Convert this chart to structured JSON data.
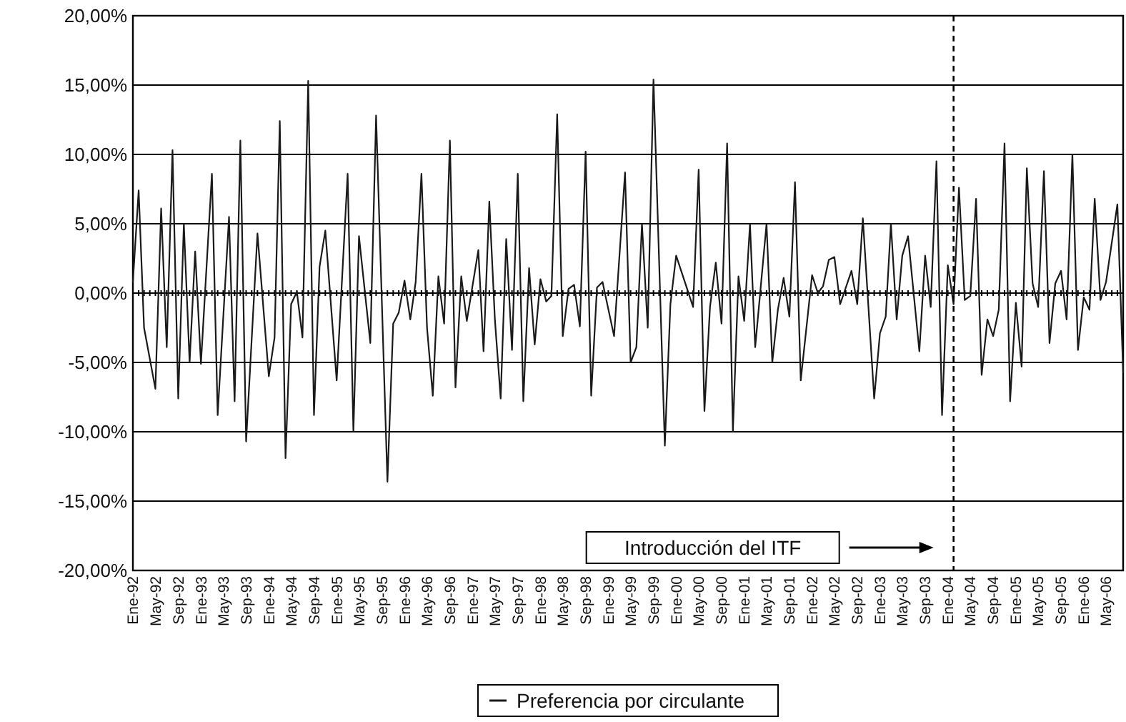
{
  "chart_data": {
    "type": "line",
    "xlim": [
      "1992-01",
      "2006-08"
    ],
    "ylim": [
      -20,
      20
    ],
    "yticks": [
      {
        "value": -20,
        "label": "-20,00%"
      },
      {
        "value": -15,
        "label": "-15,00%"
      },
      {
        "value": -10,
        "label": "-10,00%"
      },
      {
        "value": -5,
        "label": "-5,00%"
      },
      {
        "value": 0,
        "label": "0,00%"
      },
      {
        "value": 5,
        "label": "5,00%"
      },
      {
        "value": 10,
        "label": "10,00%"
      },
      {
        "value": 15,
        "label": "15,00%"
      },
      {
        "value": 20,
        "label": "20,00%"
      }
    ],
    "xticks": [
      {
        "value": "1992-01",
        "label": "Ene-92"
      },
      {
        "value": "1992-05",
        "label": "May-92"
      },
      {
        "value": "1992-09",
        "label": "Sep-92"
      },
      {
        "value": "1993-01",
        "label": "Ene-93"
      },
      {
        "value": "1993-05",
        "label": "May-93"
      },
      {
        "value": "1993-09",
        "label": "Sep-93"
      },
      {
        "value": "1994-01",
        "label": "Ene-94"
      },
      {
        "value": "1994-05",
        "label": "May-94"
      },
      {
        "value": "1994-09",
        "label": "Sep-94"
      },
      {
        "value": "1995-01",
        "label": "Ene-95"
      },
      {
        "value": "1995-05",
        "label": "May-95"
      },
      {
        "value": "1995-09",
        "label": "Sep-95"
      },
      {
        "value": "1996-01",
        "label": "Ene-96"
      },
      {
        "value": "1996-05",
        "label": "May-96"
      },
      {
        "value": "1996-09",
        "label": "Sep-96"
      },
      {
        "value": "1997-01",
        "label": "Ene-97"
      },
      {
        "value": "1997-05",
        "label": "May-97"
      },
      {
        "value": "1997-09",
        "label": "Sep-97"
      },
      {
        "value": "1998-01",
        "label": "Ene-98"
      },
      {
        "value": "1998-05",
        "label": "May-98"
      },
      {
        "value": "1998-09",
        "label": "Sep-98"
      },
      {
        "value": "1999-01",
        "label": "Ene-99"
      },
      {
        "value": "1999-05",
        "label": "May-99"
      },
      {
        "value": "1999-09",
        "label": "Sep-99"
      },
      {
        "value": "2000-01",
        "label": "Ene-00"
      },
      {
        "value": "2000-05",
        "label": "May-00"
      },
      {
        "value": "2000-09",
        "label": "Sep-00"
      },
      {
        "value": "2001-01",
        "label": "Ene-01"
      },
      {
        "value": "2001-05",
        "label": "May-01"
      },
      {
        "value": "2001-09",
        "label": "Sep-01"
      },
      {
        "value": "2002-01",
        "label": "Ene-02"
      },
      {
        "value": "2002-05",
        "label": "May-02"
      },
      {
        "value": "2002-09",
        "label": "Sep-02"
      },
      {
        "value": "2003-01",
        "label": "Ene-03"
      },
      {
        "value": "2003-05",
        "label": "May-03"
      },
      {
        "value": "2003-09",
        "label": "Sep-03"
      },
      {
        "value": "2004-01",
        "label": "Ene-04"
      },
      {
        "value": "2004-05",
        "label": "May-04"
      },
      {
        "value": "2004-09",
        "label": "Sep-04"
      },
      {
        "value": "2005-01",
        "label": "Ene-05"
      },
      {
        "value": "2005-05",
        "label": "May-05"
      },
      {
        "value": "2005-09",
        "label": "Sep-05"
      },
      {
        "value": "2006-01",
        "label": "Ene-06"
      },
      {
        "value": "2006-05",
        "label": "May-06"
      }
    ],
    "grid": "y",
    "legend": "bottom",
    "marker": "none",
    "line_style": "solid",
    "annotations": [
      "Introducción del ITF"
    ],
    "ref_lines": [
      {
        "axis": "x",
        "value": "2004-02",
        "line_style": "dashed",
        "color": "#000000"
      }
    ],
    "series": [
      {
        "name": "Preferencia por circulante",
        "color": "#1a1a1a",
        "x": [
          "1992-01",
          "1992-02",
          "1992-03",
          "1992-05",
          "1992-06",
          "1992-07",
          "1992-08",
          "1992-09",
          "1992-10",
          "1992-11",
          "1992-12",
          "1993-01",
          "1993-03",
          "1993-04",
          "1993-06",
          "1993-07",
          "1993-08",
          "1993-09",
          "1993-11",
          "1994-01",
          "1994-02",
          "1994-03",
          "1994-04",
          "1994-05",
          "1994-06",
          "1994-07",
          "1994-08",
          "1994-09",
          "1994-10",
          "1994-11",
          "1995-01",
          "1995-03",
          "1995-04",
          "1995-05",
          "1995-07",
          "1995-08",
          "1995-10",
          "1995-11",
          "1995-12",
          "1996-01",
          "1996-02",
          "1996-03",
          "1996-04",
          "1996-05",
          "1996-06",
          "1996-07",
          "1996-08",
          "1996-09",
          "1996-10",
          "1996-11",
          "1996-12",
          "1997-02",
          "1997-03",
          "1997-04",
          "1997-05",
          "1997-06",
          "1997-07",
          "1997-08",
          "1997-09",
          "1997-10",
          "1997-11",
          "1997-12",
          "1998-01",
          "1998-02",
          "1998-03",
          "1998-04",
          "1998-05",
          "1998-06",
          "1998-07",
          "1998-08",
          "1998-09",
          "1998-10",
          "1998-11",
          "1998-12",
          "1999-02",
          "1999-04",
          "1999-05",
          "1999-06",
          "1999-07",
          "1999-08",
          "1999-09",
          "1999-11",
          "1999-12",
          "2000-01",
          "2000-04",
          "2000-05",
          "2000-06",
          "2000-07",
          "2000-08",
          "2000-09",
          "2000-10",
          "2000-11",
          "2000-12",
          "2001-01",
          "2001-02",
          "2001-03",
          "2001-05",
          "2001-06",
          "2001-07",
          "2001-08",
          "2001-09",
          "2001-10",
          "2001-11",
          "2002-01",
          "2002-02",
          "2002-03",
          "2002-04",
          "2002-05",
          "2002-06",
          "2002-08",
          "2002-09",
          "2002-10",
          "2002-12",
          "2003-01",
          "2003-02",
          "2003-03",
          "2003-04",
          "2003-05",
          "2003-06",
          "2003-08",
          "2003-09",
          "2003-10",
          "2003-11",
          "2003-12",
          "2004-01",
          "2004-02",
          "2004-03",
          "2004-04",
          "2004-05",
          "2004-06",
          "2004-07",
          "2004-08",
          "2004-09",
          "2004-10",
          "2004-11",
          "2004-12",
          "2005-01",
          "2005-02",
          "2005-03",
          "2005-04",
          "2005-05",
          "2005-06",
          "2005-07",
          "2005-08",
          "2005-09",
          "2005-10",
          "2005-11",
          "2005-12",
          "2006-01",
          "2006-02",
          "2006-03",
          "2006-04",
          "2006-05",
          "2006-07",
          "2006-08"
        ],
        "values": [
          0.8,
          7.4,
          -2.5,
          -6.9,
          6.1,
          -3.9,
          10.3,
          -7.6,
          5.0,
          -5.0,
          3.0,
          -5.1,
          8.6,
          -8.8,
          5.5,
          -7.8,
          11.0,
          -10.7,
          4.3,
          -6.0,
          -3.2,
          12.4,
          -11.9,
          -0.8,
          0.1,
          -3.2,
          15.3,
          -8.8,
          1.9,
          4.5,
          -6.3,
          8.6,
          -10.0,
          4.1,
          -3.6,
          12.8,
          -13.6,
          -2.2,
          -1.4,
          0.9,
          -1.9,
          0.8,
          8.6,
          -2.5,
          -7.4,
          1.2,
          -2.2,
          11.0,
          -6.8,
          1.2,
          -2.0,
          3.1,
          -4.2,
          6.6,
          -1.9,
          -7.6,
          3.9,
          -4.1,
          8.6,
          -7.8,
          1.8,
          -3.7,
          1.0,
          -0.6,
          -0.2,
          12.9,
          -3.1,
          0.3,
          0.6,
          -2.4,
          10.2,
          -7.4,
          0.4,
          0.8,
          -3.1,
          8.7,
          -5.0,
          -3.9,
          5.0,
          -2.5,
          15.4,
          -11.0,
          -0.8,
          2.7,
          -1.0,
          8.9,
          -8.5,
          -1.0,
          2.2,
          -2.2,
          10.8,
          -10.0,
          1.2,
          -2.0,
          5.0,
          -3.9,
          5.0,
          -5.0,
          -1.2,
          1.1,
          -1.7,
          8.0,
          -6.3,
          1.3,
          0,
          0.5,
          2.4,
          2.6,
          -0.8,
          1.6,
          -0.8,
          5.4,
          -7.6,
          -2.9,
          -1.7,
          5.0,
          -1.9,
          2.7,
          4.1,
          -4.2,
          2.7,
          -1.0,
          9.5,
          -8.8,
          2.0,
          -0.8,
          7.6,
          -0.5,
          -0.2,
          6.8,
          -5.9,
          -1.9,
          -3.1,
          -1.2,
          10.8,
          -7.8,
          -0.7,
          -5.3,
          9.0,
          0.7,
          -1.0,
          8.8,
          -3.6,
          0.7,
          1.6,
          -1.9,
          10.0,
          -4.1,
          -0.3,
          -1.2,
          6.8,
          -0.5,
          0.8,
          6.4,
          -5.7
        ]
      }
    ]
  }
}
